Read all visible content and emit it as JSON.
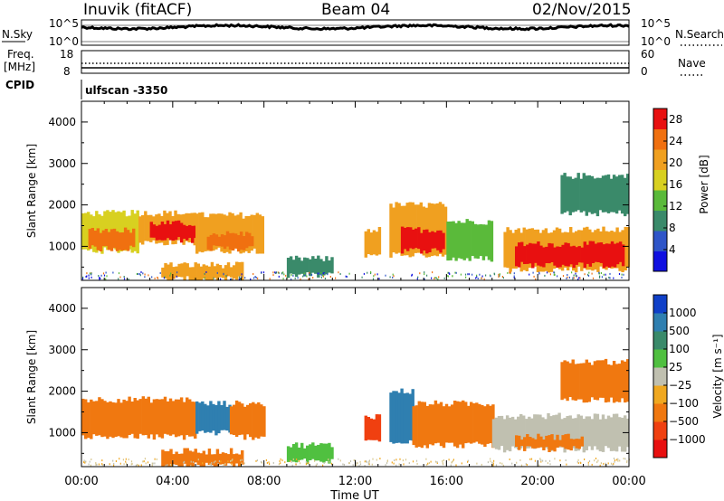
{
  "header": {
    "station": "Inuvik (fitACF)",
    "beam": "Beam 04",
    "date": "02/Nov/2015"
  },
  "top_panels": {
    "nsky_label": "N.Sky",
    "nsearch_label": "N.Search",
    "nsky_ticks": [
      "10^5",
      "10^0"
    ],
    "nsearch_ticks": [
      "10^5",
      "10^0"
    ],
    "freq_label_1": "Freq.",
    "freq_label_2": "[MHz]",
    "freq_ticks": [
      "18",
      "8"
    ],
    "nave_label": "Nave",
    "nave_ticks": [
      "60",
      "0"
    ],
    "cpid_label": "CPID",
    "cpid_value": "ulfscan -3350"
  },
  "colors": {
    "power_scale": [
      "#1010e0",
      "#2f55c8",
      "#3a8a6a",
      "#5aba3a",
      "#d8d020",
      "#f0a020",
      "#f07010",
      "#e81010"
    ],
    "velocity_scale": [
      "#1040c8",
      "#2f7fb0",
      "#3a8a6a",
      "#50c040",
      "#c0c0b0",
      "#f0a820",
      "#f07810",
      "#f04010",
      "#e81010"
    ]
  },
  "chart_data": [
    {
      "type": "heatmap",
      "name": "power",
      "ylabel": "Slant Range [km]",
      "xlabel": "Time UT",
      "ylim": [
        180,
        4500
      ],
      "xlim": [
        "00:00",
        "24:00"
      ],
      "xticks": [
        "00:00",
        "04:00",
        "08:00",
        "12:00",
        "16:00",
        "20:00",
        "00:00"
      ],
      "yticks": [
        1000,
        2000,
        3000,
        4000
      ],
      "colorbar": {
        "label": "Power [dB]",
        "ticks": [
          4,
          8,
          12,
          16,
          20,
          24,
          28
        ],
        "range": [
          0,
          30
        ]
      },
      "regions": [
        {
          "t0": 0.0,
          "t1": 2.5,
          "r0": 900,
          "r1": 1800,
          "value": 18
        },
        {
          "t0": 0.3,
          "t1": 2.3,
          "r0": 950,
          "r1": 1400,
          "value": 26
        },
        {
          "t0": 2.5,
          "t1": 5.0,
          "r0": 1100,
          "r1": 1800,
          "value": 20
        },
        {
          "t0": 3.0,
          "t1": 5.0,
          "r0": 1150,
          "r1": 1550,
          "value": 27
        },
        {
          "t0": 5.0,
          "t1": 8.0,
          "r0": 900,
          "r1": 1750,
          "value": 19
        },
        {
          "t0": 5.5,
          "t1": 7.5,
          "r0": 950,
          "r1": 1300,
          "value": 26
        },
        {
          "t0": 3.5,
          "t1": 7.0,
          "r0": 200,
          "r1": 550,
          "value": 22
        },
        {
          "t0": 9.0,
          "t1": 11.0,
          "r0": 300,
          "r1": 700,
          "value": 10
        },
        {
          "t0": 12.4,
          "t1": 13.0,
          "r0": 800,
          "r1": 1400,
          "value": 20
        },
        {
          "t0": 13.5,
          "t1": 16.0,
          "r0": 800,
          "r1": 2000,
          "value": 20
        },
        {
          "t0": 14.0,
          "t1": 15.8,
          "r0": 900,
          "r1": 1400,
          "value": 27
        },
        {
          "t0": 16.0,
          "t1": 18.0,
          "r0": 700,
          "r1": 1600,
          "value": 14
        },
        {
          "t0": 18.5,
          "t1": 24.0,
          "r0": 450,
          "r1": 1400,
          "value": 22
        },
        {
          "t0": 19.0,
          "t1": 23.8,
          "r0": 550,
          "r1": 1050,
          "value": 29
        },
        {
          "t0": 21.0,
          "t1": 24.0,
          "r0": 1800,
          "r1": 2700,
          "value": 10
        }
      ]
    },
    {
      "type": "heatmap",
      "name": "velocity",
      "ylabel": "Slant Range [km]",
      "xlabel": "Time UT",
      "ylim": [
        180,
        4500
      ],
      "xlim": [
        "00:00",
        "24:00"
      ],
      "xticks": [
        "00:00",
        "04:00",
        "08:00",
        "12:00",
        "16:00",
        "20:00",
        "00:00"
      ],
      "yticks": [
        1000,
        2000,
        3000,
        4000
      ],
      "colorbar": {
        "label": "Velocity [m s⁻¹]",
        "ticks": [
          "1000",
          "500",
          "100",
          "25",
          "−25",
          "−100",
          "−500",
          "−1000"
        ]
      },
      "regions": [
        {
          "t0": 0.0,
          "t1": 5.0,
          "r0": 900,
          "r1": 1800,
          "value": -300
        },
        {
          "t0": 5.0,
          "t1": 6.5,
          "r0": 1000,
          "r1": 1700,
          "value": 200
        },
        {
          "t0": 6.5,
          "t1": 8.0,
          "r0": 900,
          "r1": 1700,
          "value": -200
        },
        {
          "t0": 3.5,
          "t1": 7.0,
          "r0": 200,
          "r1": 550,
          "value": -200
        },
        {
          "t0": 9.0,
          "t1": 11.0,
          "r0": 300,
          "r1": 700,
          "value": 50
        },
        {
          "t0": 12.4,
          "t1": 13.0,
          "r0": 800,
          "r1": 1400,
          "value": -600
        },
        {
          "t0": 13.5,
          "t1": 14.5,
          "r0": 800,
          "r1": 2000,
          "value": 300
        },
        {
          "t0": 14.5,
          "t1": 18.0,
          "r0": 700,
          "r1": 1700,
          "value": -300
        },
        {
          "t0": 18.0,
          "t1": 24.0,
          "r0": 600,
          "r1": 1400,
          "value": 0
        },
        {
          "t0": 19.0,
          "t1": 22.0,
          "r0": 600,
          "r1": 900,
          "value": -200
        },
        {
          "t0": 21.0,
          "t1": 24.0,
          "r0": 1800,
          "r1": 2700,
          "value": -200
        }
      ]
    }
  ]
}
